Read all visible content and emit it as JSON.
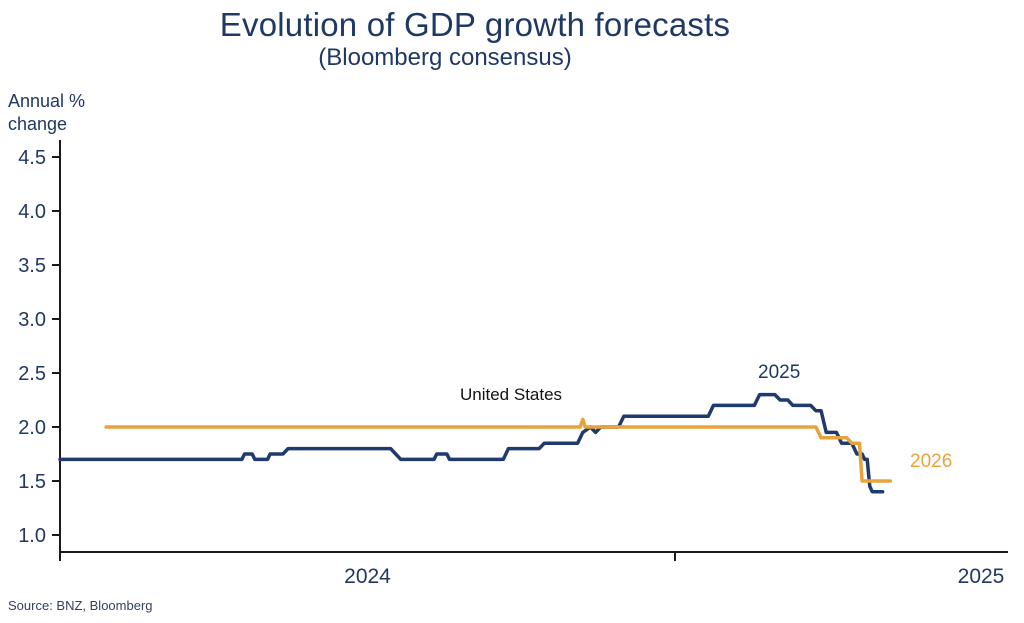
{
  "title": "Evolution of GDP growth forecasts",
  "subtitle": "(Bloomberg consensus)",
  "y_axis_title_line1": "Annual %",
  "y_axis_title_line2": "change",
  "source": "Source: BNZ, Bloomberg",
  "annotations": {
    "us_label": "United States",
    "navy_series_label": "2025",
    "gold_series_label": "2026"
  },
  "colors": {
    "navy": "#1f3a6e",
    "gold": "#e8a33c",
    "title": "#1f3864",
    "axis": "#1a1a1a",
    "tick_text": "#1f3864"
  },
  "chart_data": {
    "type": "line",
    "title": "Evolution of GDP growth forecasts",
    "subtitle": "(Bloomberg consensus)",
    "ylabel": "Annual % change",
    "x_unit": "months since Jan 2024",
    "xlim": [
      0,
      18.5
    ],
    "ylim": [
      1.0,
      4.6
    ],
    "yticks": [
      1.0,
      1.5,
      2.0,
      2.5,
      3.0,
      3.5,
      4.0,
      4.5
    ],
    "x_axis_ticks_months": [
      0,
      12
    ],
    "x_tick_labels": [
      "2024",
      "2025"
    ],
    "legend_position": "inline-annotations",
    "grid": false,
    "series": [
      {
        "name": "2025",
        "color_key": "navy",
        "points": [
          [
            0,
            1.7
          ],
          [
            3.55,
            1.7
          ],
          [
            3.6,
            1.75
          ],
          [
            3.75,
            1.75
          ],
          [
            3.8,
            1.7
          ],
          [
            4.05,
            1.7
          ],
          [
            4.1,
            1.75
          ],
          [
            4.35,
            1.75
          ],
          [
            4.45,
            1.8
          ],
          [
            6.45,
            1.8
          ],
          [
            6.55,
            1.75
          ],
          [
            6.65,
            1.7
          ],
          [
            7.3,
            1.7
          ],
          [
            7.35,
            1.75
          ],
          [
            7.55,
            1.75
          ],
          [
            7.6,
            1.7
          ],
          [
            8.65,
            1.7
          ],
          [
            8.75,
            1.8
          ],
          [
            9.35,
            1.8
          ],
          [
            9.45,
            1.85
          ],
          [
            10.1,
            1.85
          ],
          [
            10.2,
            1.95
          ],
          [
            10.35,
            2.0
          ],
          [
            10.45,
            1.95
          ],
          [
            10.55,
            2.0
          ],
          [
            10.9,
            2.0
          ],
          [
            11.0,
            2.1
          ],
          [
            12.65,
            2.1
          ],
          [
            12.75,
            2.2
          ],
          [
            13.55,
            2.2
          ],
          [
            13.65,
            2.3
          ],
          [
            13.95,
            2.3
          ],
          [
            14.05,
            2.25
          ],
          [
            14.2,
            2.25
          ],
          [
            14.3,
            2.2
          ],
          [
            14.65,
            2.2
          ],
          [
            14.75,
            2.15
          ],
          [
            14.85,
            2.15
          ],
          [
            14.95,
            1.95
          ],
          [
            15.15,
            1.95
          ],
          [
            15.25,
            1.85
          ],
          [
            15.45,
            1.85
          ],
          [
            15.55,
            1.75
          ],
          [
            15.65,
            1.75
          ],
          [
            15.7,
            1.7
          ],
          [
            15.75,
            1.7
          ],
          [
            15.8,
            1.45
          ],
          [
            15.85,
            1.4
          ],
          [
            16.05,
            1.4
          ]
        ]
      },
      {
        "name": "2026",
        "color_key": "gold",
        "points": [
          [
            0.9,
            2.0
          ],
          [
            10.15,
            2.0
          ],
          [
            10.2,
            2.07
          ],
          [
            10.25,
            2.0
          ],
          [
            14.75,
            2.0
          ],
          [
            14.85,
            1.9
          ],
          [
            15.35,
            1.9
          ],
          [
            15.45,
            1.85
          ],
          [
            15.6,
            1.85
          ],
          [
            15.65,
            1.5
          ],
          [
            16.2,
            1.5
          ]
        ]
      }
    ]
  }
}
